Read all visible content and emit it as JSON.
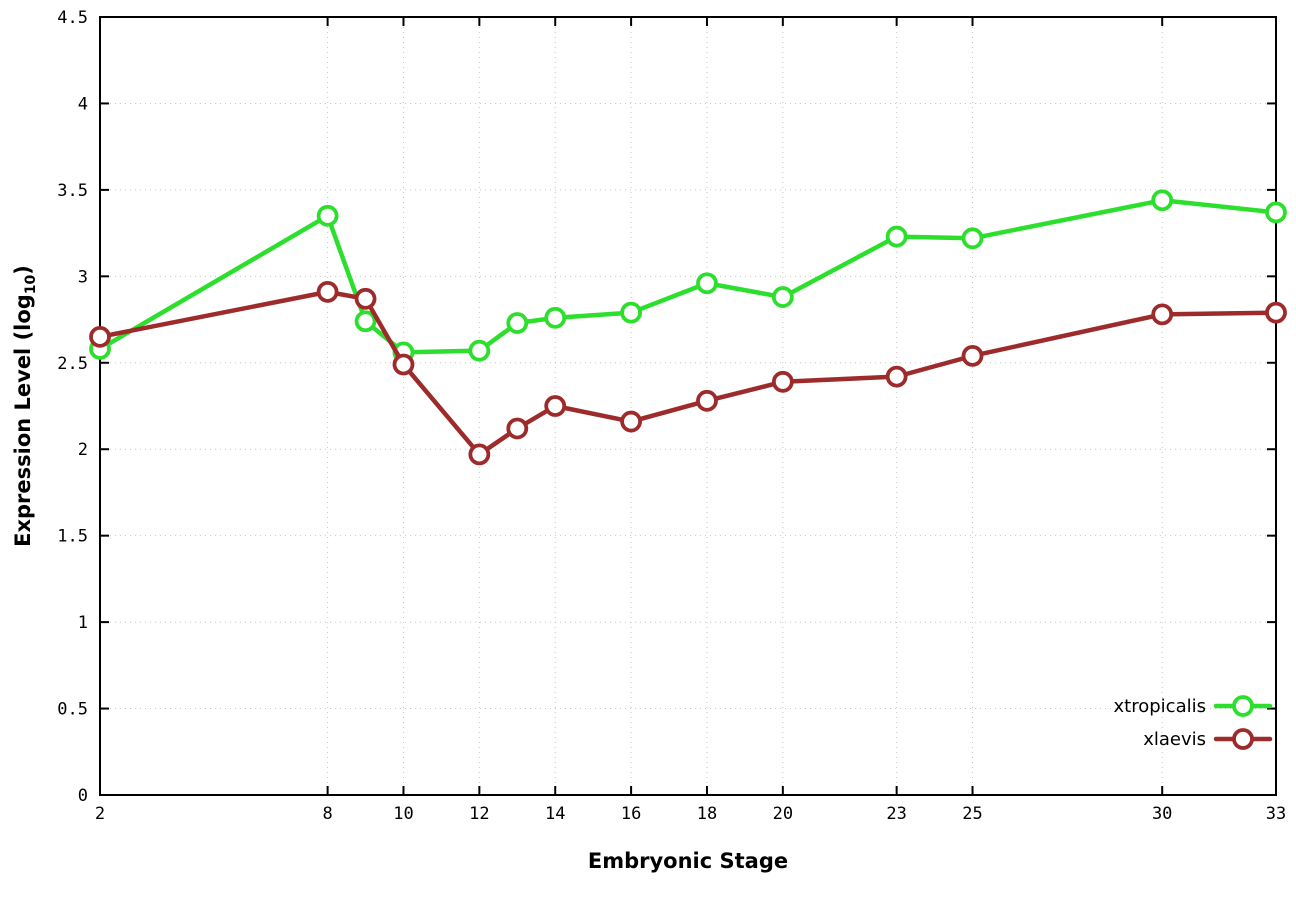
{
  "chart_data": {
    "type": "line",
    "title": "",
    "xlabel": "Embryonic Stage",
    "ylabel_prefix": "Expression Level (log",
    "ylabel_sub": "10",
    "ylabel_suffix": ")",
    "x": [
      2,
      8,
      9,
      10,
      12,
      13,
      14,
      16,
      18,
      20,
      23,
      25,
      30,
      33
    ],
    "xticks": [
      2,
      8,
      10,
      12,
      14,
      16,
      18,
      20,
      23,
      25,
      30,
      33
    ],
    "yticks": [
      0,
      0.5,
      1,
      1.5,
      2,
      2.5,
      3,
      3.5,
      4,
      4.5
    ],
    "ytick_labels": [
      "0",
      "0.5",
      "1",
      "1.5",
      "2",
      "2.5",
      "3",
      "3.5",
      "4",
      "4.5"
    ],
    "xlim": [
      2,
      33
    ],
    "ylim": [
      0,
      4.5
    ],
    "grid": true,
    "legend_position": "bottom-right",
    "series": [
      {
        "name": "xtropicalis",
        "color": "#2ddf2d",
        "values": [
          2.58,
          3.35,
          2.74,
          2.56,
          2.57,
          2.73,
          2.76,
          2.79,
          2.96,
          2.88,
          3.23,
          3.22,
          3.44,
          3.37
        ]
      },
      {
        "name": "xlaevis",
        "color": "#9e2b2b",
        "values": [
          2.65,
          2.91,
          2.87,
          2.49,
          1.97,
          2.12,
          2.25,
          2.16,
          2.28,
          2.39,
          2.42,
          2.54,
          2.78,
          2.79
        ]
      }
    ],
    "style": {
      "grid_color": "#c8c8c8",
      "border_color": "#000000",
      "background": "#ffffff",
      "line_width": 4.5,
      "marker_radius": 9,
      "marker_stroke": 3.8
    }
  }
}
